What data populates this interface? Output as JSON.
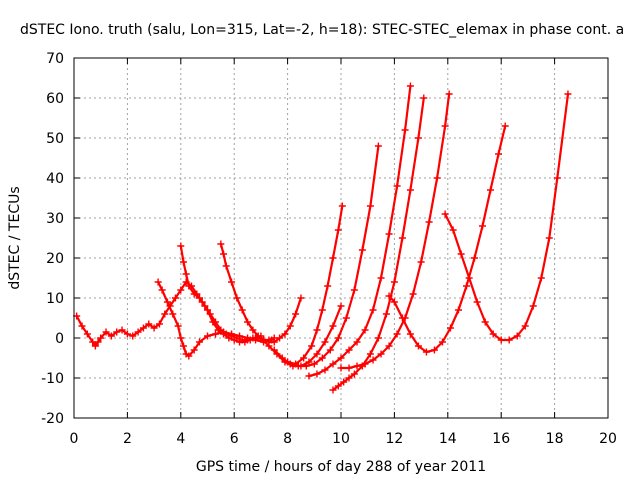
{
  "chart_data": {
    "type": "scatter",
    "title": "dSTEC Iono. truth (salu, Lon=315, Lat=-2, h=18): STEC-STEC_elemax in phase cont. a",
    "xlabel": "GPS time / hours of day 288 of year 2011",
    "ylabel": "dSTEC  / TECUs",
    "xlim": [
      0,
      20
    ],
    "ylim": [
      -20,
      70
    ],
    "xticks": [
      0,
      2,
      4,
      6,
      8,
      10,
      12,
      14,
      16,
      18,
      20
    ],
    "yticks": [
      -20,
      -10,
      0,
      10,
      20,
      30,
      40,
      50,
      60,
      70
    ],
    "grid": true,
    "marker": "plus",
    "color": "#ff0000",
    "series": [
      {
        "x": [
          0.1,
          0.3,
          0.5,
          0.7,
          0.8,
          0.9,
          1.0,
          1.2,
          1.4,
          1.6,
          1.8,
          2.0,
          2.2,
          2.4,
          2.6,
          2.8,
          3.0,
          3.2,
          3.4,
          3.6,
          3.8,
          4.0,
          4.2,
          4.4,
          4.6,
          4.8,
          5.0,
          5.2,
          5.4,
          5.6,
          5.8,
          6.0,
          6.2,
          6.4,
          6.6,
          6.8,
          7.0
        ],
        "y": [
          5.5,
          3,
          1,
          -1,
          -2,
          -1,
          0,
          1.5,
          0.5,
          1.5,
          2,
          1,
          0.5,
          1.5,
          2.5,
          3.5,
          2.5,
          3.5,
          6,
          8,
          10,
          12,
          14,
          13,
          11,
          9,
          7,
          4,
          2,
          1,
          0,
          -0.5,
          -1,
          -1,
          -0.5,
          0,
          0.5
        ]
      },
      {
        "x": [
          3.15,
          3.3,
          3.5,
          3.7,
          3.9,
          4.0,
          4.1,
          4.2,
          4.3,
          4.5,
          4.7,
          5.0,
          5.3,
          5.6,
          5.9,
          6.2,
          6.5,
          6.8,
          7.1,
          7.4
        ],
        "y": [
          14,
          12,
          9,
          6,
          3,
          0,
          -2,
          -4,
          -4.5,
          -3,
          -1,
          0.5,
          1,
          1.5,
          1,
          0.5,
          0,
          -0.5,
          -1,
          -0.5
        ]
      },
      {
        "x": [
          4.0,
          4.1,
          4.2,
          4.3,
          4.5,
          4.7,
          4.9,
          5.1,
          5.3,
          5.5,
          5.7,
          5.9,
          6.1,
          6.3,
          6.5,
          6.7,
          6.9,
          7.1,
          7.3,
          7.5
        ],
        "y": [
          23,
          19,
          16,
          13,
          11,
          10,
          8,
          6,
          4,
          2,
          1,
          0.5,
          0,
          -0.5,
          -0.5,
          0,
          0,
          -0.5,
          -0.5,
          0
        ]
      },
      {
        "x": [
          5.5,
          5.6,
          5.7,
          5.9,
          6.1,
          6.3,
          6.5,
          6.7,
          6.9,
          7.1,
          7.3,
          7.5,
          7.7,
          7.9,
          8.1,
          8.3,
          8.5
        ],
        "y": [
          23.5,
          21,
          18,
          14,
          10,
          7,
          4,
          2,
          0.5,
          -0.5,
          -1,
          -1,
          0,
          1,
          3,
          6,
          10
        ]
      },
      {
        "x": [
          7.0,
          7.3,
          7.6,
          7.9,
          8.2,
          8.5,
          8.8,
          9.1,
          9.4,
          9.7,
          10.0
        ],
        "y": [
          0,
          -2,
          -4,
          -6,
          -7,
          -7,
          -6,
          -4,
          -1,
          3,
          8
        ]
      },
      {
        "x": [
          8.0,
          8.3,
          8.6,
          8.9,
          9.1,
          9.3,
          9.5,
          9.7,
          9.9,
          10.05
        ],
        "y": [
          -6,
          -6.5,
          -5,
          -2,
          2,
          7,
          13,
          20,
          27,
          33
        ]
      },
      {
        "x": [
          7.5,
          7.8,
          8.1,
          8.4,
          8.7,
          9.0,
          9.3,
          9.6,
          9.9,
          10.2,
          10.5,
          10.8,
          11.1,
          11.4
        ],
        "y": [
          -3,
          -5,
          -6.5,
          -7,
          -7,
          -6.5,
          -5,
          -3,
          0,
          5,
          12,
          22,
          33,
          48
        ]
      },
      {
        "x": [
          8.8,
          9.1,
          9.4,
          9.7,
          10.0,
          10.3,
          10.6,
          10.9,
          11.2,
          11.5,
          11.8,
          12.1,
          12.4,
          12.6
        ],
        "y": [
          -9.5,
          -9,
          -8,
          -6.5,
          -5,
          -3,
          -1,
          2,
          7,
          15,
          26,
          38,
          52,
          63
        ]
      },
      {
        "x": [
          9.7,
          9.9,
          10.1,
          10.3,
          10.5,
          10.8,
          11.1,
          11.4,
          11.7,
          12.0,
          12.3,
          12.6,
          12.9,
          13.1
        ],
        "y": [
          -13,
          -12,
          -11,
          -10,
          -9,
          -7,
          -4,
          0,
          6,
          14,
          25,
          37,
          50,
          60
        ]
      },
      {
        "x": [
          10.0,
          10.3,
          10.6,
          10.9,
          11.2,
          11.5,
          11.8,
          12.1,
          12.4,
          12.7,
          13.0,
          13.3,
          13.6,
          13.9,
          14.05
        ],
        "y": [
          -7.5,
          -7.5,
          -7,
          -6.5,
          -5.5,
          -4,
          -2,
          1,
          5,
          11,
          19,
          29,
          40,
          53,
          61
        ]
      },
      {
        "x": [
          11.8,
          12.0,
          12.3,
          12.6,
          12.9,
          13.2,
          13.5,
          13.8,
          14.1,
          14.4,
          14.7,
          15.0,
          15.3,
          15.6,
          15.9,
          16.15
        ],
        "y": [
          10.5,
          9,
          5,
          1,
          -2,
          -3.5,
          -3,
          -1,
          2.5,
          7,
          13,
          20,
          28,
          37,
          46,
          53
        ]
      },
      {
        "x": [
          13.9,
          14.2,
          14.5,
          14.8,
          15.1,
          15.4,
          15.7,
          16.0,
          16.3,
          16.6,
          16.9,
          17.2,
          17.5,
          17.8,
          18.1,
          18.5
        ],
        "y": [
          31,
          27,
          21,
          15,
          9,
          4,
          1,
          -0.5,
          -0.5,
          0.5,
          3,
          8,
          15,
          25,
          40,
          61
        ]
      }
    ]
  }
}
